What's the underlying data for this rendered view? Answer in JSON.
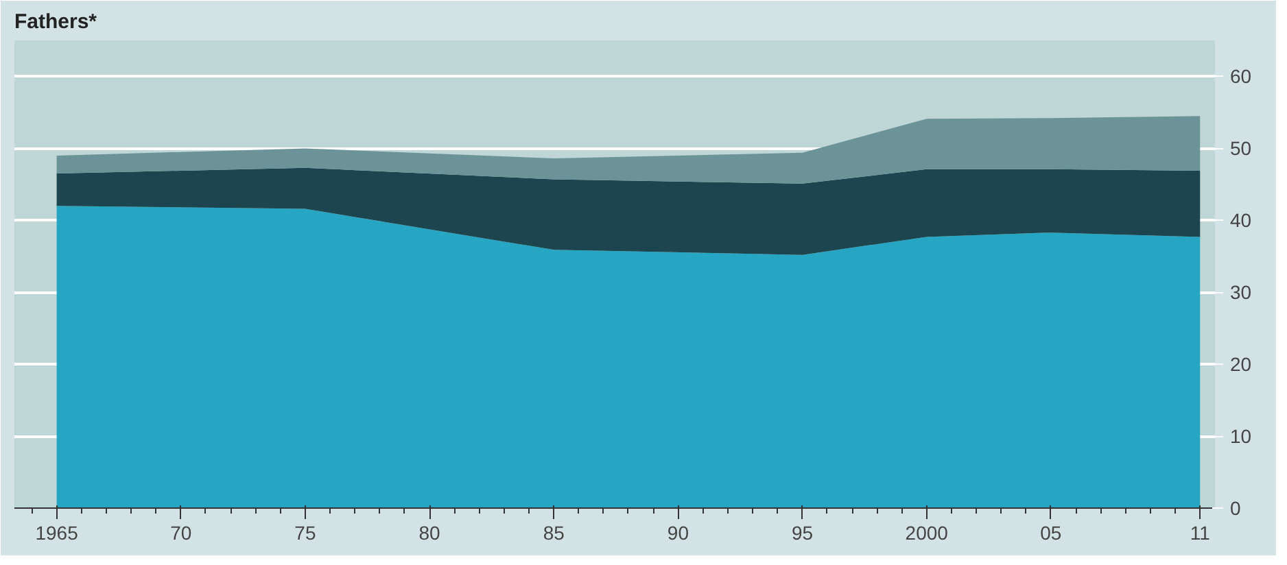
{
  "chart_data": {
    "type": "area",
    "title": "Fathers*",
    "stacked": true,
    "x": [
      1965,
      1975,
      1985,
      1995,
      2000,
      2005,
      2011
    ],
    "series": [
      {
        "color": "#27a6c4",
        "values": [
          42.0,
          41.6,
          35.9,
          35.2,
          37.7,
          38.3,
          37.7
        ]
      },
      {
        "color": "#1d4550",
        "values": [
          4.5,
          5.7,
          9.8,
          9.9,
          9.4,
          8.8,
          9.2
        ]
      },
      {
        "color": "#6c9398",
        "values": [
          2.5,
          2.7,
          2.9,
          4.3,
          7.0,
          7.1,
          7.6
        ]
      }
    ],
    "xlim": [
      1963.3,
      2011.6
    ],
    "ylim": [
      0,
      65
    ],
    "xticks": [
      1965,
      {
        "value": 1970,
        "label": "70"
      },
      {
        "value": 1975,
        "label": "75"
      },
      {
        "value": 1980,
        "label": "80"
      },
      {
        "value": 1985,
        "label": "85"
      },
      {
        "value": 1990,
        "label": "90"
      },
      {
        "value": 1995,
        "label": "95"
      },
      2000,
      {
        "value": 2005,
        "label": "05"
      },
      {
        "value": 2011,
        "label": "11"
      }
    ],
    "yticks": [
      0,
      10,
      20,
      30,
      40,
      50,
      60
    ],
    "grid": "y"
  }
}
